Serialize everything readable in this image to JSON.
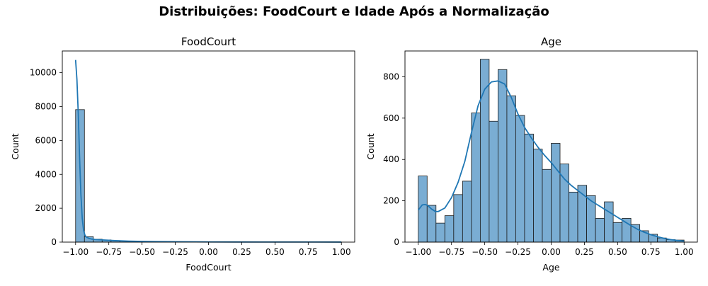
{
  "figure": {
    "suptitle": "Distribuições: FoodCourt e Idade Após a Normalização",
    "bar_color": "#7aadd3",
    "bar_edge": "#1a1a1a",
    "kde_color": "#1f77b4"
  },
  "chart_data": [
    {
      "type": "bar",
      "subtype": "histogram_with_kde",
      "title": "FoodCourt",
      "xlabel": "FoodCourt",
      "ylabel": "Count",
      "xlim": [
        -1.1,
        1.1
      ],
      "ylim": [
        0,
        11280
      ],
      "xticks": [
        -1.0,
        -0.75,
        -0.5,
        -0.25,
        0.0,
        0.25,
        0.5,
        0.75,
        1.0
      ],
      "xtick_labels": [
        "−1.00",
        "−0.75",
        "−0.50",
        "−0.25",
        "0.00",
        "0.25",
        "0.50",
        "0.75",
        "1.00"
      ],
      "yticks": [
        0,
        2000,
        4000,
        6000,
        8000,
        10000
      ],
      "ytick_labels": [
        "0",
        "2000",
        "4000",
        "6000",
        "8000",
        "10000"
      ],
      "bins": {
        "start": -1.0,
        "end": 1.0,
        "count": 30
      },
      "values": [
        7820,
        320,
        170,
        130,
        90,
        60,
        45,
        35,
        30,
        25,
        20,
        18,
        15,
        12,
        10,
        10,
        8,
        8,
        6,
        6,
        5,
        5,
        4,
        4,
        3,
        3,
        3,
        2,
        2,
        2
      ],
      "kde": {
        "x": [
          -1.0,
          -0.99,
          -0.98,
          -0.97,
          -0.96,
          -0.95,
          -0.94,
          -0.93,
          -0.92,
          -0.9,
          -0.88,
          -0.85,
          -0.8,
          -0.75,
          -0.7,
          -0.65,
          -0.6,
          -0.5,
          -0.4,
          -0.3,
          -0.2,
          -0.1,
          0.0,
          0.2,
          0.4,
          0.6,
          0.8,
          1.0
        ],
        "y": [
          10750,
          9600,
          7600,
          5000,
          2800,
          1400,
          700,
          420,
          300,
          220,
          180,
          150,
          130,
          110,
          90,
          70,
          55,
          40,
          30,
          24,
          18,
          14,
          11,
          8,
          6,
          5,
          4,
          3
        ]
      }
    },
    {
      "type": "bar",
      "subtype": "histogram_with_kde",
      "title": "Age",
      "xlabel": "Age",
      "ylabel": "Count",
      "xlim": [
        -1.1,
        1.1
      ],
      "ylim": [
        0,
        925
      ],
      "xticks": [
        -1.0,
        -0.75,
        -0.5,
        -0.25,
        0.0,
        0.25,
        0.5,
        0.75,
        1.0
      ],
      "xtick_labels": [
        "−1.00",
        "−0.75",
        "−0.50",
        "−0.25",
        "0.00",
        "0.25",
        "0.50",
        "0.75",
        "1.00"
      ],
      "yticks": [
        0,
        200,
        400,
        600,
        800
      ],
      "ytick_labels": [
        "0",
        "200",
        "400",
        "600",
        "800"
      ],
      "bins": {
        "start": -1.0,
        "end": 1.0,
        "count": 30
      },
      "values": [
        320,
        178,
        92,
        128,
        230,
        295,
        625,
        885,
        585,
        835,
        708,
        613,
        523,
        450,
        352,
        478,
        378,
        242,
        275,
        225,
        115,
        195,
        95,
        115,
        85,
        55,
        38,
        20,
        12,
        10
      ],
      "kde": {
        "x": [
          -1.0,
          -0.97,
          -0.95,
          -0.93,
          -0.9,
          -0.87,
          -0.85,
          -0.8,
          -0.75,
          -0.7,
          -0.65,
          -0.6,
          -0.55,
          -0.5,
          -0.45,
          -0.4,
          -0.35,
          -0.3,
          -0.25,
          -0.2,
          -0.15,
          -0.1,
          -0.05,
          0.0,
          0.05,
          0.1,
          0.15,
          0.2,
          0.25,
          0.3,
          0.35,
          0.4,
          0.45,
          0.5,
          0.55,
          0.6,
          0.65,
          0.7,
          0.75,
          0.8,
          0.85,
          0.9,
          0.95,
          1.0
        ],
        "y": [
          155,
          180,
          182,
          178,
          160,
          148,
          148,
          165,
          215,
          290,
          390,
          530,
          660,
          740,
          775,
          780,
          765,
          700,
          620,
          555,
          505,
          460,
          420,
          385,
          345,
          305,
          275,
          250,
          225,
          200,
          180,
          160,
          140,
          120,
          100,
          80,
          62,
          48,
          36,
          26,
          18,
          12,
          8,
          5
        ]
      }
    }
  ]
}
